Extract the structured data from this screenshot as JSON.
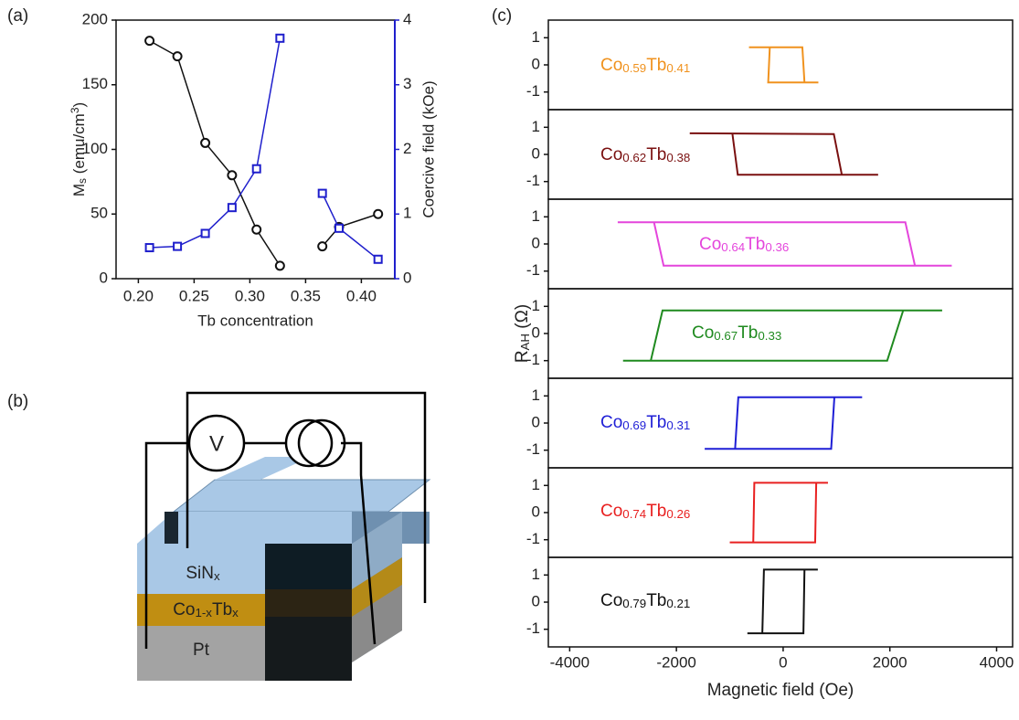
{
  "panel_labels": [
    "(a)",
    "(b)",
    "(c)"
  ],
  "diagram": {
    "voltmeter": "V",
    "layers": [
      [
        {
          "text": "SiN"
        },
        {
          "text": "x",
          "sub": true
        }
      ],
      [
        {
          "text": "Co"
        },
        {
          "text": "1-x",
          "sub": true
        },
        {
          "text": "Tb"
        },
        {
          "text": "x",
          "sub": true
        }
      ],
      [
        {
          "text": "Pt"
        }
      ]
    ]
  },
  "chart_data": [
    {
      "type": "line",
      "xlabel": "Tb concentration",
      "ylabel": [
        {
          "text": "M"
        },
        {
          "text": "s",
          "sub": true
        },
        {
          "text": " (emu/cm"
        },
        {
          "text": "3",
          "sup": true
        },
        {
          "text": ")"
        }
      ],
      "y2label": "Coercive field (kOe)",
      "y2_color": "#1f1fcc",
      "xlim": [
        0.18,
        0.43
      ],
      "xticks": [
        {
          "value": 0.2,
          "label": "0.20"
        },
        {
          "value": 0.25,
          "label": "0.25"
        },
        {
          "value": 0.3,
          "label": "0.30"
        },
        {
          "value": 0.35,
          "label": "0.35"
        },
        {
          "value": 0.4,
          "label": "0.40"
        }
      ],
      "ylim": [
        0,
        200
      ],
      "yticks": [
        0,
        50,
        100,
        150,
        200
      ],
      "y2lim": [
        0,
        4
      ],
      "y2ticks": [
        0,
        1,
        2,
        3,
        4
      ],
      "x": [
        0.21,
        0.235,
        0.26,
        0.284,
        0.306,
        0.327,
        null,
        0.365,
        0.38,
        0.415
      ],
      "series": [
        {
          "color": "#111111",
          "marker": "circle",
          "values": [
            184,
            172,
            105,
            80,
            38,
            10,
            null,
            25,
            40,
            50
          ]
        },
        {
          "color": "#1f1fcc",
          "marker": "square",
          "axis": "y2",
          "values": [
            0.48,
            0.5,
            0.7,
            1.1,
            1.7,
            3.72,
            null,
            1.32,
            0.78,
            0.3
          ]
        }
      ]
    },
    {
      "type": "hysteresis",
      "xlabel": "Magnetic field (Oe)",
      "ylabel": [
        {
          "text": "R"
        },
        {
          "text": "AH",
          "sub": true
        },
        {
          "text": " (Ω)"
        }
      ],
      "xlim": [
        -4400,
        4300
      ],
      "xticks": [
        -4000,
        -2000,
        0,
        2000,
        4000
      ],
      "ylim": [
        -1.65,
        1.65
      ],
      "yticks": [
        -1,
        0,
        1
      ],
      "series": [
        {
          "name": [
            {
              "text": "Co"
            },
            {
              "text": "0.59",
              "sub": true
            },
            {
              "text": "Tb"
            },
            {
              "text": "0.41",
              "sub": true
            }
          ],
          "color": "#f0921e",
          "x": [
            -640,
            360,
            400,
            660,
            -280,
            -250
          ],
          "values": [
            0.65,
            0.65,
            -0.65,
            -0.65,
            -0.65,
            0.65
          ]
        },
        {
          "name": [
            {
              "text": "Co"
            },
            {
              "text": "0.62",
              "sub": true
            },
            {
              "text": "Tb"
            },
            {
              "text": "0.38",
              "sub": true
            }
          ],
          "color": "#7a1010",
          "x": [
            -1750,
            950,
            1100,
            1780,
            -850,
            -950
          ],
          "values": [
            0.78,
            0.75,
            -0.75,
            -0.75,
            -0.75,
            0.75
          ]
        },
        {
          "name": [
            {
              "text": "Co"
            },
            {
              "text": "0.64",
              "sub": true
            },
            {
              "text": "Tb"
            },
            {
              "text": "0.36",
              "sub": true
            }
          ],
          "color": "#e445dc",
          "x": [
            -3100,
            2290,
            2470,
            3160,
            -2240,
            -2420
          ],
          "values": [
            0.8,
            0.8,
            -0.8,
            -0.8,
            -0.8,
            0.8
          ]
        },
        {
          "name": [
            {
              "text": "Co"
            },
            {
              "text": "0.67",
              "sub": true
            },
            {
              "text": "Tb"
            },
            {
              "text": "0.33",
              "sub": true
            }
          ],
          "color": "#1f8a1f",
          "x": [
            -3000,
            1950,
            2250,
            2980,
            -2260,
            -2480
          ],
          "values": [
            -1.0,
            -1.0,
            0.85,
            0.85,
            0.85,
            -1.0
          ]
        },
        {
          "name": [
            {
              "text": "Co"
            },
            {
              "text": "0.69",
              "sub": true
            },
            {
              "text": "Tb"
            },
            {
              "text": "0.31",
              "sub": true
            }
          ],
          "color": "#1f1fd6",
          "x": [
            -1470,
            900,
            960,
            1480,
            -840,
            -900
          ],
          "values": [
            -0.95,
            -0.95,
            0.95,
            0.95,
            0.95,
            -0.95
          ]
        },
        {
          "name": [
            {
              "text": "Co"
            },
            {
              "text": "0.74",
              "sub": true
            },
            {
              "text": "Tb"
            },
            {
              "text": "0.26",
              "sub": true
            }
          ],
          "color": "#e82020",
          "x": [
            -1000,
            600,
            620,
            840,
            -540,
            -560
          ],
          "values": [
            -1.1,
            -1.1,
            1.1,
            1.1,
            1.1,
            -1.1
          ]
        },
        {
          "name": [
            {
              "text": "Co"
            },
            {
              "text": "0.79",
              "sub": true
            },
            {
              "text": "Tb"
            },
            {
              "text": "0.21",
              "sub": true
            }
          ],
          "color": "#111111",
          "x": [
            -670,
            380,
            400,
            650,
            -360,
            -390
          ],
          "values": [
            -1.15,
            -1.15,
            1.2,
            1.2,
            1.2,
            -1.15
          ]
        }
      ]
    }
  ]
}
